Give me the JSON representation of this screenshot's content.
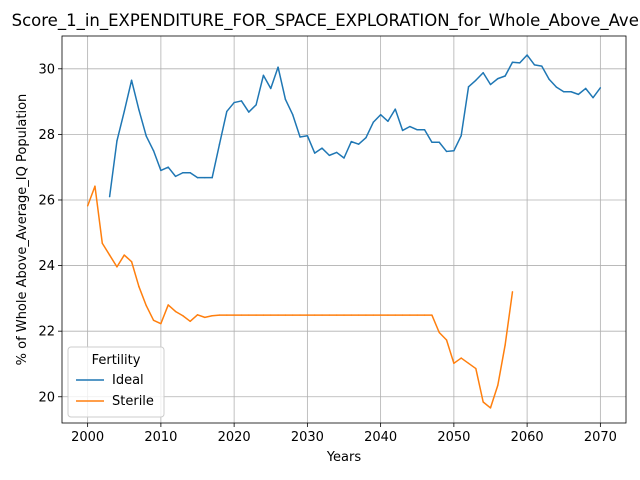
{
  "chart_data": {
    "type": "line",
    "title": "Score_1_in_EXPENDITURE_FOR_SPACE_EXPLORATION_for_Whole_Above_Average",
    "xlabel": "Years",
    "ylabel": "% of Whole Above_Average_IQ Population",
    "xlim": [
      1996.5,
      2073.5
    ],
    "ylim": [
      19.2,
      31.0
    ],
    "xticks": [
      2000,
      2010,
      2020,
      2030,
      2040,
      2050,
      2060,
      2070
    ],
    "yticks": [
      20,
      22,
      24,
      26,
      28,
      30
    ],
    "grid": true,
    "legend": {
      "title": "Fertility",
      "placement": "lower-left"
    },
    "series": [
      {
        "name": "Ideal",
        "color": "#1f77b4",
        "x": [
          2003,
          2004,
          2005,
          2006,
          2007,
          2008,
          2009,
          2010,
          2011,
          2012,
          2013,
          2014,
          2015,
          2016,
          2017,
          2018,
          2019,
          2020,
          2021,
          2022,
          2023,
          2024,
          2025,
          2026,
          2027,
          2028,
          2029,
          2030,
          2031,
          2032,
          2033,
          2034,
          2035,
          2036,
          2037,
          2038,
          2039,
          2040,
          2041,
          2042,
          2043,
          2044,
          2045,
          2046,
          2047,
          2048,
          2049,
          2050,
          2051,
          2052,
          2053,
          2054,
          2055,
          2056,
          2057,
          2058,
          2059,
          2060,
          2061,
          2062,
          2063,
          2064,
          2065,
          2066,
          2067,
          2068,
          2069,
          2070
        ],
        "y": [
          26.1,
          27.8,
          28.7,
          29.65,
          28.75,
          27.95,
          27.5,
          26.9,
          27.0,
          26.72,
          26.83,
          26.83,
          26.68,
          26.68,
          26.68,
          27.7,
          28.7,
          28.97,
          29.02,
          28.68,
          28.9,
          29.8,
          29.4,
          30.05,
          29.07,
          28.6,
          27.92,
          27.96,
          27.43,
          27.58,
          27.36,
          27.45,
          27.28,
          27.78,
          27.7,
          27.9,
          28.37,
          28.6,
          28.4,
          28.77,
          28.12,
          28.24,
          28.14,
          28.14,
          27.76,
          27.76,
          27.48,
          27.5,
          27.96,
          29.45,
          29.65,
          29.88,
          29.52,
          29.7,
          29.78,
          30.2,
          30.18,
          30.42,
          30.12,
          30.08,
          29.68,
          29.44,
          29.3,
          29.3,
          29.22,
          29.4,
          29.12,
          29.42
        ]
      },
      {
        "name": "Sterile",
        "color": "#ff7f0e",
        "x": [
          2000,
          2001,
          2002,
          2003,
          2004,
          2005,
          2006,
          2007,
          2008,
          2009,
          2010,
          2011,
          2012,
          2013,
          2014,
          2015,
          2016,
          2017,
          2018,
          2019,
          2020,
          2021,
          2022,
          2023,
          2024,
          2025,
          2026,
          2027,
          2028,
          2029,
          2030,
          2031,
          2032,
          2033,
          2034,
          2035,
          2036,
          2037,
          2038,
          2039,
          2040,
          2041,
          2042,
          2043,
          2044,
          2045,
          2046,
          2047,
          2048,
          2049,
          2050,
          2051,
          2052,
          2053,
          2054,
          2055,
          2056,
          2057,
          2058
        ],
        "y": [
          25.82,
          26.42,
          24.68,
          24.32,
          23.96,
          24.32,
          24.12,
          23.36,
          22.78,
          22.33,
          22.23,
          22.8,
          22.6,
          22.47,
          22.3,
          22.5,
          22.42,
          22.47,
          22.49,
          22.49,
          22.49,
          22.49,
          22.49,
          22.49,
          22.49,
          22.49,
          22.49,
          22.49,
          22.49,
          22.49,
          22.49,
          22.49,
          22.49,
          22.49,
          22.49,
          22.49,
          22.49,
          22.49,
          22.49,
          22.49,
          22.49,
          22.49,
          22.49,
          22.49,
          22.49,
          22.49,
          22.49,
          22.49,
          21.96,
          21.73,
          21.02,
          21.18,
          21.02,
          20.86,
          19.84,
          19.66,
          20.35,
          21.58,
          23.2
        ]
      }
    ]
  }
}
